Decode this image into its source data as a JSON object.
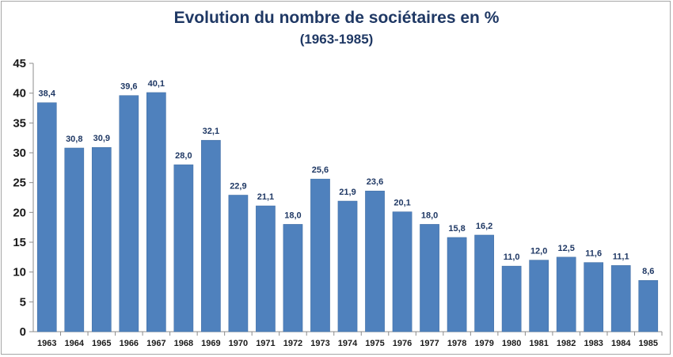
{
  "chart_data": {
    "type": "bar",
    "title": "Evolution du nombre de sociétaires en %",
    "subtitle": "(1963-1985)",
    "xlabel": "",
    "ylabel": "",
    "ylim": [
      0,
      45
    ],
    "yticks": [
      0,
      5,
      10,
      15,
      20,
      25,
      30,
      35,
      40,
      45
    ],
    "grid": false,
    "legend": "none",
    "bar_color": "#4f81bd",
    "label_color": "#1f3864",
    "categories": [
      "1963",
      "1964",
      "1965",
      "1966",
      "1967",
      "1968",
      "1969",
      "1970",
      "1971",
      "1972",
      "1973",
      "1974",
      "1975",
      "1976",
      "1977",
      "1978",
      "1979",
      "1980",
      "1981",
      "1982",
      "1983",
      "1984",
      "1985"
    ],
    "values": [
      38.4,
      30.8,
      30.9,
      39.6,
      40.1,
      28.0,
      32.1,
      22.9,
      21.1,
      18.0,
      25.6,
      21.9,
      23.6,
      20.1,
      18.0,
      15.8,
      16.2,
      11.0,
      12.0,
      12.5,
      11.6,
      11.1,
      8.6
    ],
    "data_labels": [
      "38,4",
      "30,8",
      "30,9",
      "39,6",
      "40,1",
      "28,0",
      "32,1",
      "22,9",
      "21,1",
      "18,0",
      "25,6",
      "21,9",
      "23,6",
      "20,1",
      "18,0",
      "15,8",
      "16,2",
      "11,0",
      "12,0",
      "12,5",
      "11,6",
      "11,1",
      "8,6"
    ]
  }
}
